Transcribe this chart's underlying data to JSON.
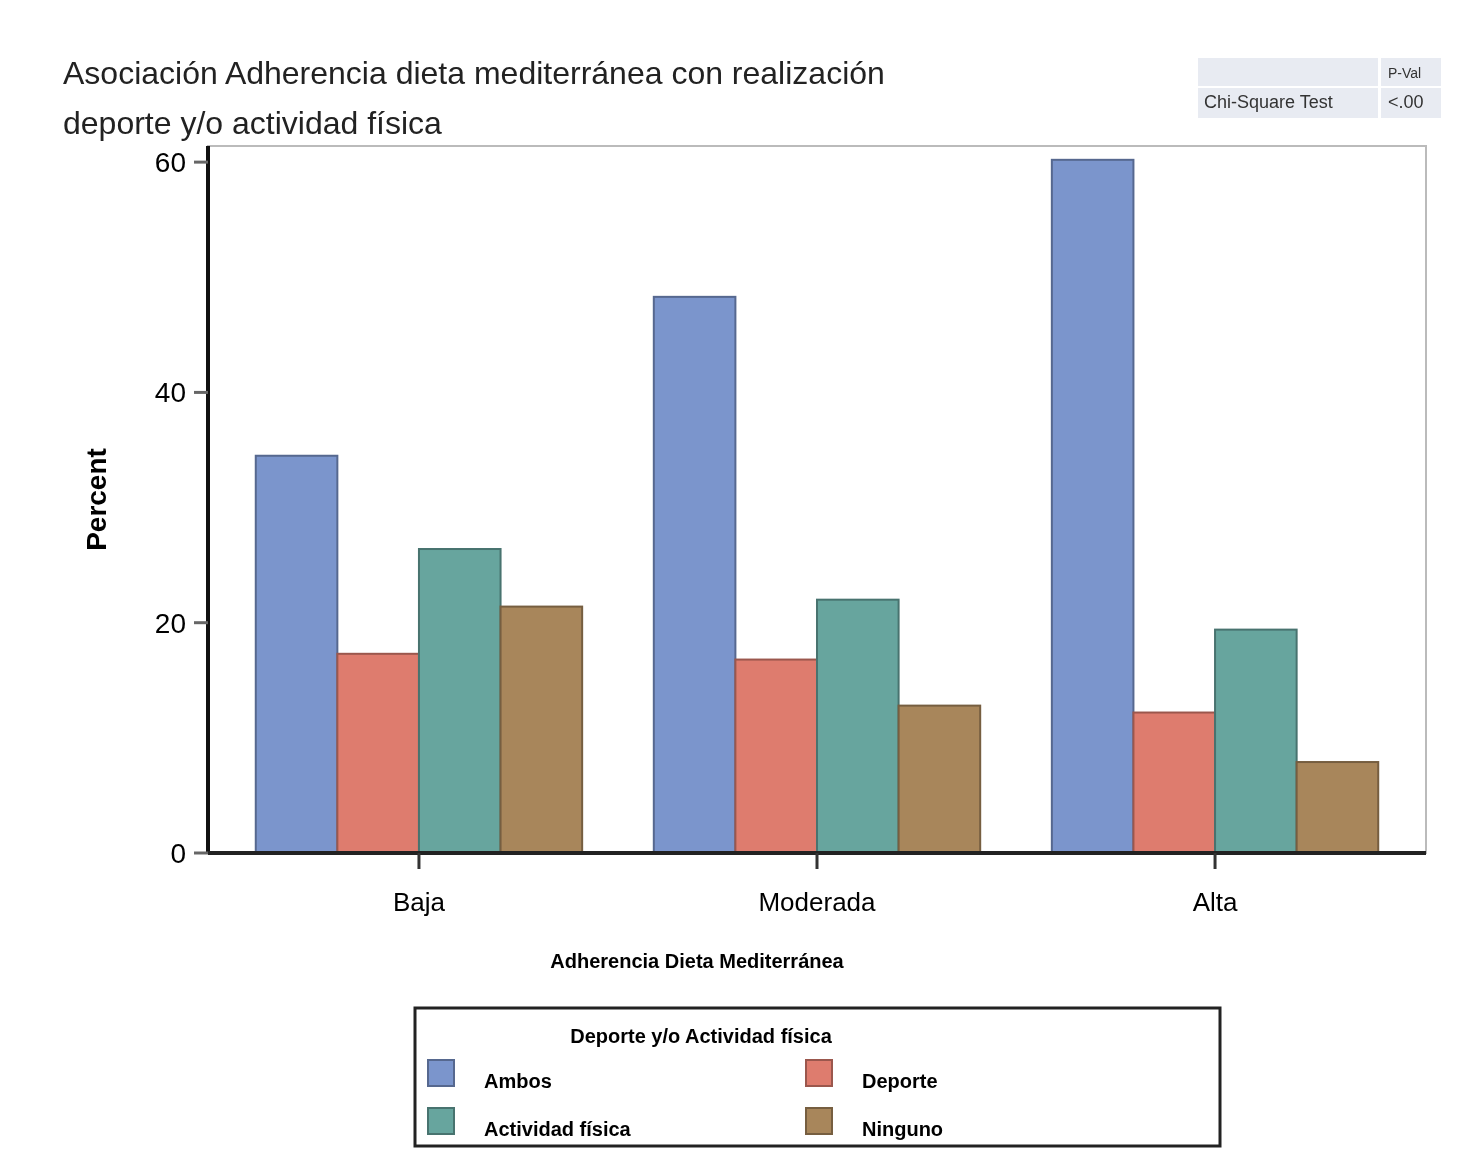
{
  "chart_data": {
    "type": "bar",
    "title": "Asociación Adherencia dieta mediterránea con realización deporte y/o actividad física",
    "xlabel": "Adherencia Dieta Mediterránea",
    "ylabel": "Percent",
    "legend_title": "Deporte y/o Actividad física",
    "categories": [
      "Baja",
      "Moderada",
      "Alta"
    ],
    "series": [
      {
        "name": "Ambos",
        "color": "#7b95cc",
        "values": [
          34.5,
          48.3,
          60.2
        ]
      },
      {
        "name": "Deporte",
        "color": "#de7c6e",
        "values": [
          17.3,
          16.8,
          12.2
        ]
      },
      {
        "name": "Actividad física",
        "color": "#67a59e",
        "values": [
          26.4,
          22.0,
          19.4
        ]
      },
      {
        "name": "Ninguno",
        "color": "#a8865b",
        "values": [
          21.4,
          12.8,
          7.9
        ]
      }
    ],
    "ylim": [
      0,
      61.4
    ],
    "yticks": [
      0,
      20,
      40,
      60
    ],
    "grid": false,
    "legend": "bottom",
    "annotations": [
      "P-Val",
      "Chi-Square Test",
      "<.00"
    ]
  }
}
